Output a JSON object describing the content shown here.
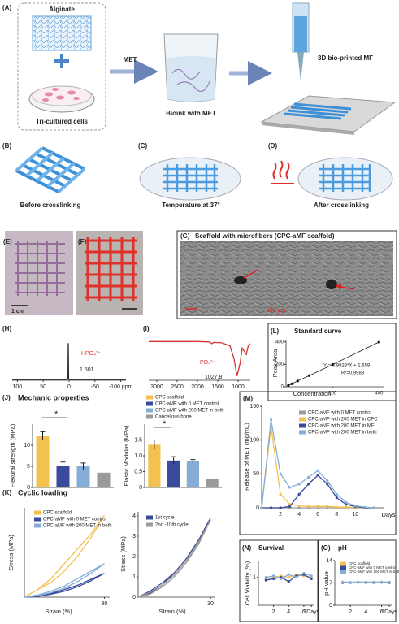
{
  "figure": {
    "panel_labels": [
      "(A)",
      "(B)",
      "(C)",
      "(D)",
      "(E)",
      "(F)",
      "(G)",
      "(H)",
      "(I)",
      "(L)",
      "(J)",
      "(M)",
      "(K)",
      "(N)",
      "(O)"
    ],
    "a": {
      "alginate": "Alginate",
      "cells": "Tri-cultured cells",
      "met": "MET",
      "bioink": "Bioink with MET",
      "printed": "3D bio-printed MF"
    },
    "bcd": [
      "Before crosslinking",
      "Temperature at 37°",
      "After crosslinking"
    ],
    "e_scale": "1 cm",
    "g_title": "Scaffold with microfibers (CPC-aMF scaffold)",
    "g_scale": "200 μm"
  },
  "chart_data": [
    {
      "type": "line",
      "annotations": [
        "HPO₄²⁻",
        "1.501"
      ],
      "xlim": [
        110,
        -110
      ],
      "xticks": [
        100,
        50,
        0,
        -50,
        {
          "value": -100,
          "label": "-100 ppm"
        }
      ],
      "ylim": [
        0,
        100
      ],
      "x": [
        110,
        10,
        5,
        2,
        1.5,
        1,
        -2,
        -110
      ],
      "series": [
        {
          "color": "#222222",
          "values": [
            2,
            2,
            2,
            3,
            95,
            3,
            2,
            2
          ]
        }
      ]
    },
    {
      "type": "line",
      "annotations": [
        "PO₄³⁻",
        "1027.8"
      ],
      "xlim": [
        3200,
        700
      ],
      "xticks": [
        3000,
        2500,
        2000,
        1500,
        1000
      ],
      "ylim": [
        0,
        100
      ],
      "x": [
        3200,
        2500,
        2000,
        1700,
        1650,
        1600,
        1400,
        1200,
        1100,
        1027.8,
        950,
        900,
        800,
        750,
        700
      ],
      "series": [
        {
          "color": "#d33333",
          "values": [
            90,
            90,
            90,
            89,
            85,
            88,
            87,
            80,
            50,
            10,
            40,
            75,
            60,
            80,
            85
          ]
        }
      ]
    },
    {
      "type": "scatter",
      "title": "Standard curve",
      "xlabel": "Concentration",
      "ylabel": "Peak Area",
      "annotations": [
        "Y = 0.9928*X + 1.659",
        "R²=0.9988"
      ],
      "xlim": [
        0,
        420
      ],
      "ylim": [
        0,
        420
      ],
      "xticks": [
        200,
        400
      ],
      "yticks": [
        0,
        200,
        400
      ],
      "color": "#111111",
      "x": [
        10,
        25,
        50,
        100,
        200,
        400
      ],
      "values": [
        12,
        26,
        52,
        100,
        198,
        398
      ]
    },
    {
      "type": "bar",
      "title": "Mechanic properties",
      "ylabel": "Flexural strength (MPa)",
      "annotations": [
        "*"
      ],
      "ylim": [
        0,
        15
      ],
      "yticks": [
        0,
        5,
        10
      ],
      "series": [
        {
          "color": "#f2c14e",
          "values": [
            12.2
          ],
          "errors": [
            1.0
          ]
        },
        {
          "color": "#3a4a9c",
          "values": [
            5.2
          ],
          "errors": [
            0.8
          ]
        },
        {
          "color": "#86acd8",
          "values": [
            5.0
          ],
          "errors": [
            0.8
          ]
        },
        {
          "color": "#9a9a9a",
          "values": [
            3.5
          ]
        }
      ]
    },
    {
      "type": "bar",
      "ylabel": "Elastic Modulus (MPa)",
      "annotations": [
        "*"
      ],
      "ylim": [
        0,
        2
      ],
      "yticks": [
        0,
        0.5,
        {
          "value": 1,
          "label": "1.0"
        },
        1.5
      ],
      "series": [
        {
          "name": "CPC scaffold",
          "color": "#f2c14e",
          "values": [
            1.35
          ],
          "errors": [
            0.15
          ]
        },
        {
          "name": "CPC-aMF with 0 MET control",
          "color": "#3a4a9c",
          "values": [
            0.85
          ],
          "errors": [
            0.12
          ]
        },
        {
          "name": "CPC-aMF with 200 MET in both",
          "color": "#86acd8",
          "values": [
            0.82
          ],
          "errors": [
            0.06
          ]
        },
        {
          "name": "Cancellous bone",
          "color": "#9a9a9a",
          "values": [
            0.28
          ]
        }
      ]
    },
    {
      "type": "line",
      "ylabel": "Release of MET (mg/mL)",
      "xlabel": "Days",
      "xlim": [
        0,
        13
      ],
      "xticks": [
        2,
        4,
        6,
        8,
        10
      ],
      "ylim": [
        0,
        150
      ],
      "yticks": [
        0,
        50,
        100,
        150
      ],
      "x": [
        0,
        1,
        2,
        3,
        4,
        5,
        6,
        7,
        8,
        9,
        10,
        11,
        12
      ],
      "series": [
        {
          "name": "CPC-aMF with 0 MET control",
          "color": "#9a9a9a",
          "values": [
            0,
            0,
            0,
            0,
            0,
            0,
            0,
            0,
            0,
            0,
            0,
            0,
            0
          ]
        },
        {
          "name": "CPC-aMF with 200 MET in CPC",
          "color": "#f2c14e",
          "values": [
            0,
            120,
            20,
            5,
            3,
            2,
            2,
            2,
            1,
            1,
            1,
            0,
            0
          ]
        },
        {
          "name": "CPC-aMF with 200 MET in MF",
          "color": "#3a4a9c",
          "values": [
            0,
            0,
            0,
            2,
            20,
            35,
            48,
            35,
            15,
            5,
            2,
            0,
            0
          ]
        },
        {
          "name": "CPC-aMF with 200 MET in both",
          "color": "#86acd8",
          "values": [
            0,
            130,
            50,
            30,
            35,
            45,
            55,
            40,
            20,
            8,
            3,
            1,
            0
          ]
        }
      ]
    },
    {
      "type": "line",
      "title": "Cyclic loading",
      "xlabel": "Strain (%)",
      "ylabel": "Stress (MPa)",
      "xlim": [
        0,
        32
      ],
      "xticks": [
        30
      ],
      "ylim": [
        0,
        12
      ],
      "x": [
        0,
        5,
        10,
        15,
        20,
        25,
        30,
        25,
        20,
        15,
        10,
        5,
        0
      ],
      "series": [
        {
          "name": "CPC scaffold",
          "color": "#f2c14e",
          "values": [
            0,
            1,
            2.5,
            4.5,
            6.5,
            8.5,
            11,
            8,
            5.5,
            3.5,
            2,
            1,
            0
          ]
        },
        {
          "name": "CPC-aMF with 0 MET control",
          "color": "#3a4a9c",
          "values": [
            0,
            0.2,
            0.5,
            1,
            1.6,
            2.4,
            3.2,
            2.2,
            1.4,
            0.8,
            0.4,
            0.1,
            0
          ]
        },
        {
          "name": "CPC-aMF with 200 MET in both",
          "color": "#86acd8",
          "values": [
            0,
            0.3,
            0.8,
            1.5,
            2.5,
            3.5,
            4.5,
            3.2,
            2.1,
            1.2,
            0.6,
            0.2,
            0
          ]
        }
      ]
    },
    {
      "type": "line",
      "xlabel": "Strain (%)",
      "ylabel": "Stress (MPa)",
      "xlim": [
        0,
        32
      ],
      "xticks": [
        30
      ],
      "ylim": [
        0,
        4.2
      ],
      "yticks": [
        0,
        1,
        2,
        3,
        4
      ],
      "x": [
        0,
        5,
        10,
        15,
        20,
        25,
        30,
        25,
        20,
        15,
        10,
        5,
        0
      ],
      "series": [
        {
          "name": "1st cycle",
          "color": "#3a4a9c",
          "values": [
            0,
            0.3,
            0.7,
            1.2,
            1.9,
            2.8,
            3.9,
            2.8,
            1.9,
            1.2,
            0.6,
            0.2,
            0
          ]
        },
        {
          "name": "2nd -10th cycle",
          "color": "#9a9a9a",
          "values": [
            0,
            0.25,
            0.6,
            1.1,
            1.8,
            2.7,
            3.8,
            2.6,
            1.7,
            1.0,
            0.5,
            0.15,
            0
          ]
        }
      ]
    },
    {
      "type": "line",
      "title": "Survival",
      "ylabel": "Cell Viability (%)",
      "xlim": [
        0,
        7.3
      ],
      "xticks": [
        2,
        4,
        6,
        {
          "value": 7,
          "label": "7Days"
        }
      ],
      "ylim": [
        0,
        1.6
      ],
      "yticks": [
        1
      ],
      "x": [
        1,
        2,
        3,
        4,
        5,
        6,
        7
      ],
      "series": [
        {
          "color": "#f2c14e",
          "values": [
            0.95,
            1.0,
            1.05,
            1.0,
            1.1,
            1.05,
            1.0
          ]
        },
        {
          "color": "#3a4a9c",
          "values": [
            0.9,
            0.95,
            1.0,
            0.85,
            1.05,
            1.1,
            0.95
          ]
        },
        {
          "color": "#86acd8",
          "values": [
            1.0,
            1.05,
            0.95,
            1.1,
            1.0,
            1.15,
            1.05
          ]
        }
      ]
    },
    {
      "type": "line",
      "title": "pH",
      "ylabel": "pH value",
      "xlim": [
        0,
        7.3
      ],
      "xticks": [
        2,
        4,
        6,
        {
          "value": 7,
          "label": "7Days"
        }
      ],
      "ylim": [
        0,
        14
      ],
      "yticks": [
        0,
        7,
        14
      ],
      "x": [
        1,
        2,
        3,
        4,
        5,
        6,
        7
      ],
      "series": [
        {
          "name": "CPC scaffold",
          "color": "#f2c14e",
          "values": [
            7.2,
            7.2,
            7.2,
            7.2,
            7.3,
            7.2,
            7.2
          ]
        },
        {
          "name": "CPC-aMF with 0 MET control",
          "color": "#3a4a9c",
          "values": [
            7.1,
            7.1,
            7.2,
            7.1,
            7.1,
            7.2,
            7.1
          ]
        },
        {
          "name": "CPC-aMF with 200 MET in both",
          "color": "#86acd8",
          "values": [
            7.3,
            7.2,
            7.3,
            7.3,
            7.2,
            7.3,
            7.3
          ]
        }
      ]
    }
  ]
}
